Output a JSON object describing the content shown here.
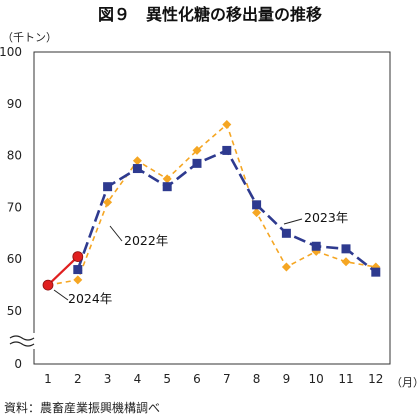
{
  "chart_data": {
    "type": "line",
    "title": "図９　異性化糖の移出量の推移",
    "y_unit_label": "（千トン）",
    "x_unit_label": "（月）",
    "source_note": "資料：農畜産業振興機構調べ",
    "categories": [
      "1",
      "2",
      "3",
      "4",
      "5",
      "6",
      "7",
      "8",
      "9",
      "10",
      "11",
      "12"
    ],
    "y_tick_labels": [
      "100",
      "90",
      "80",
      "70",
      "60",
      "50",
      "0"
    ],
    "ylim": [
      0,
      100
    ],
    "axis_break": [
      0,
      50
    ],
    "grid": false,
    "series": [
      {
        "name": "2022年",
        "color": "#f5a623",
        "marker": "diamond",
        "dash": true,
        "values": [
          55,
          56,
          71,
          79,
          75.5,
          81,
          86,
          69,
          58.5,
          61.5,
          59.5,
          58.5
        ]
      },
      {
        "name": "2023年",
        "color": "#2e3a8f",
        "marker": "square",
        "dash": true,
        "values": [
          null,
          58,
          74,
          77.5,
          74,
          78.5,
          81,
          70.5,
          65,
          62.5,
          62,
          57.5
        ]
      },
      {
        "name": "2024年",
        "color": "#e02020",
        "marker": "circle",
        "dash": false,
        "values": [
          55,
          60.5,
          null,
          null,
          null,
          null,
          null,
          null,
          null,
          null,
          null,
          null
        ]
      }
    ]
  }
}
